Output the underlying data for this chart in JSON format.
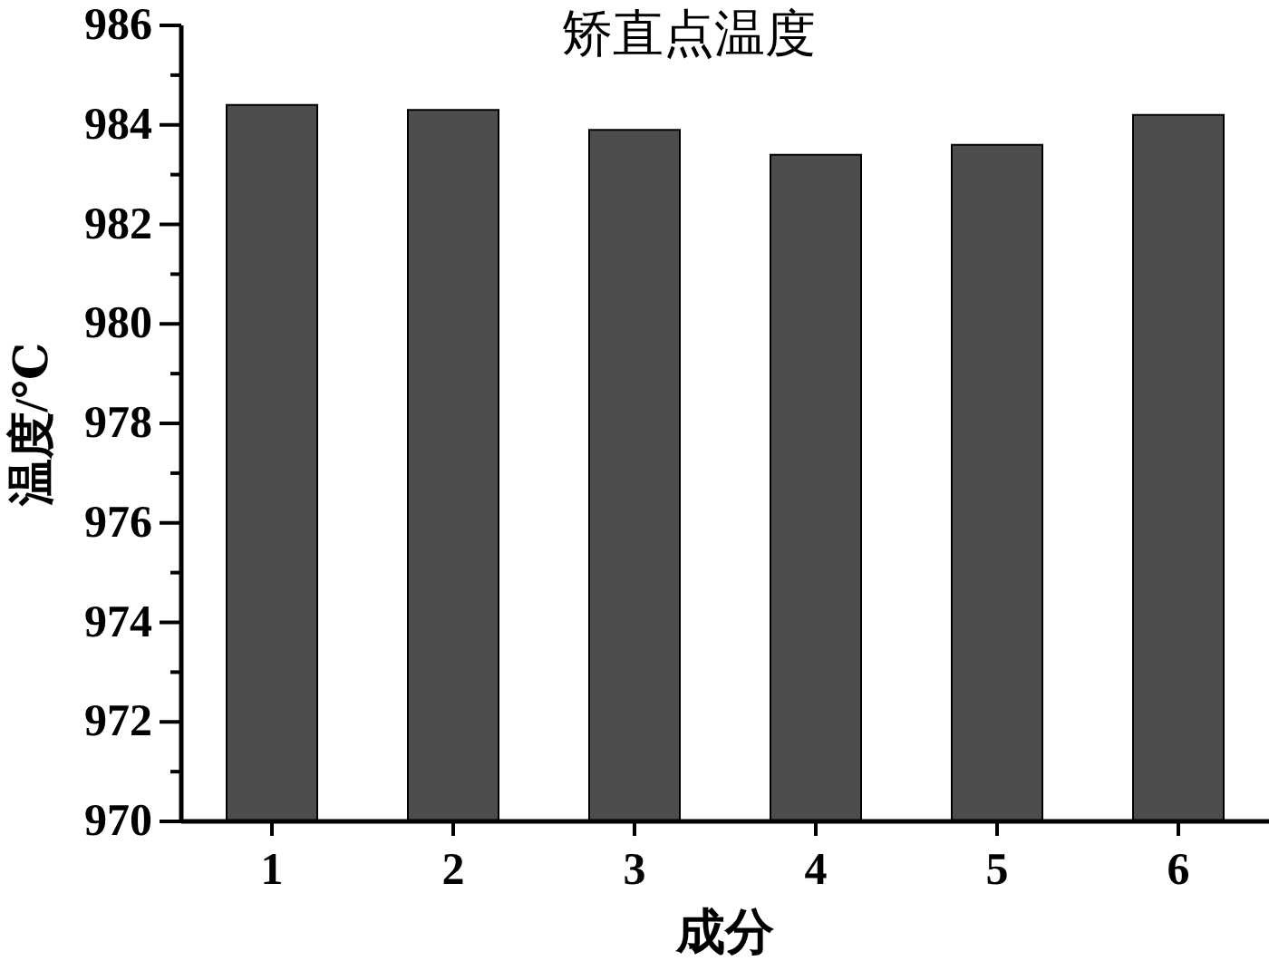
{
  "chart_data": {
    "type": "bar",
    "title": "矫直点温度",
    "xlabel": "成分",
    "ylabel": "温度/℃",
    "categories": [
      "1",
      "2",
      "3",
      "4",
      "5",
      "6"
    ],
    "values": [
      984.4,
      984.3,
      983.9,
      983.4,
      983.6,
      984.2
    ],
    "color": "#4d4d4d",
    "ylim": [
      970,
      986
    ],
    "yticks": [
      970,
      {
        "value": 971,
        "label": null
      },
      972,
      {
        "value": 973,
        "label": null
      },
      974,
      {
        "value": 975,
        "label": null
      },
      976,
      {
        "value": 977,
        "label": null
      },
      978,
      {
        "value": 979,
        "label": null
      },
      980,
      {
        "value": 981,
        "label": null
      },
      982,
      {
        "value": 983,
        "label": null
      },
      984,
      {
        "value": 985,
        "label": null
      },
      986
    ]
  }
}
